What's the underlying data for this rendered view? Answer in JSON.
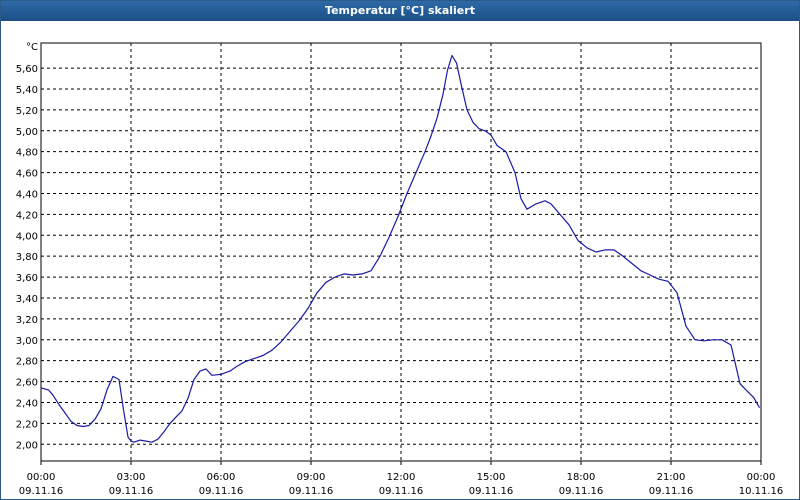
{
  "window": {
    "title": "Temperatur [°C] skaliert"
  },
  "chart_data": {
    "type": "line",
    "title": "Temperatur [°C] skaliert",
    "ylabel": "°C",
    "xlabel": "",
    "ylim": [
      1.84,
      5.84
    ],
    "xlim": [
      0,
      24
    ],
    "grid": true,
    "y_ticks": [
      "2,00",
      "2,20",
      "2,40",
      "2,60",
      "2,80",
      "3,00",
      "3,20",
      "3,40",
      "3,60",
      "3,80",
      "4,00",
      "4,20",
      "4,40",
      "4,60",
      "4,80",
      "5,00",
      "5,20",
      "5,40",
      "5,60"
    ],
    "x_ticks": [
      {
        "time": "00:00",
        "date": "09.11.16"
      },
      {
        "time": "03:00",
        "date": "09.11.16"
      },
      {
        "time": "06:00",
        "date": "09.11.16"
      },
      {
        "time": "09:00",
        "date": "09.11.16"
      },
      {
        "time": "12:00",
        "date": "09.11.16"
      },
      {
        "time": "15:00",
        "date": "09.11.16"
      },
      {
        "time": "18:00",
        "date": "09.11.16"
      },
      {
        "time": "21:00",
        "date": "09.11.16"
      },
      {
        "time": "00:00",
        "date": "10.11.16"
      }
    ],
    "series": [
      {
        "color": "#1a1aa6",
        "x": [
          0,
          0.25,
          0.4,
          0.6,
          0.8,
          1.0,
          1.2,
          1.4,
          1.6,
          1.8,
          2.0,
          2.2,
          2.4,
          2.6,
          2.75,
          2.9,
          3.0,
          3.1,
          3.3,
          3.5,
          3.7,
          3.9,
          4.1,
          4.3,
          4.5,
          4.7,
          4.9,
          5.1,
          5.3,
          5.5,
          5.7,
          6.0,
          6.3,
          6.5,
          6.8,
          7.1,
          7.4,
          7.7,
          8.0,
          8.3,
          8.6,
          8.9,
          9.2,
          9.5,
          9.8,
          10.1,
          10.4,
          10.7,
          11.0,
          11.3,
          11.6,
          11.9,
          12.2,
          12.5,
          12.8,
          13.0,
          13.2,
          13.4,
          13.55,
          13.7,
          13.85,
          14.0,
          14.2,
          14.4,
          14.6,
          14.8,
          15.0,
          15.2,
          15.5,
          15.8,
          16.0,
          16.2,
          16.5,
          16.8,
          17.0,
          17.3,
          17.6,
          17.9,
          18.2,
          18.5,
          18.8,
          19.1,
          19.4,
          19.7,
          20.0,
          20.3,
          20.6,
          20.9,
          21.2,
          21.5,
          21.8,
          22.1,
          22.4,
          22.7,
          23.0,
          23.3,
          23.5,
          23.75,
          23.95
        ],
        "y": [
          2.54,
          2.52,
          2.47,
          2.38,
          2.3,
          2.22,
          2.18,
          2.17,
          2.18,
          2.24,
          2.34,
          2.52,
          2.65,
          2.62,
          2.33,
          2.07,
          2.03,
          2.02,
          2.04,
          2.03,
          2.02,
          2.05,
          2.12,
          2.2,
          2.26,
          2.32,
          2.44,
          2.62,
          2.7,
          2.72,
          2.66,
          2.67,
          2.7,
          2.74,
          2.79,
          2.82,
          2.85,
          2.9,
          2.98,
          3.08,
          3.18,
          3.3,
          3.45,
          3.55,
          3.6,
          3.63,
          3.62,
          3.63,
          3.66,
          3.8,
          3.98,
          4.18,
          4.4,
          4.6,
          4.8,
          4.95,
          5.12,
          5.35,
          5.58,
          5.72,
          5.65,
          5.45,
          5.2,
          5.08,
          5.02,
          5.0,
          4.96,
          4.86,
          4.8,
          4.6,
          4.35,
          4.25,
          4.3,
          4.33,
          4.3,
          4.2,
          4.1,
          3.95,
          3.88,
          3.84,
          3.86,
          3.86,
          3.8,
          3.73,
          3.66,
          3.62,
          3.58,
          3.56,
          3.45,
          3.13,
          3.0,
          2.99,
          3.0,
          3.0,
          2.95,
          2.58,
          2.52,
          2.45,
          2.35
        ]
      }
    ]
  }
}
